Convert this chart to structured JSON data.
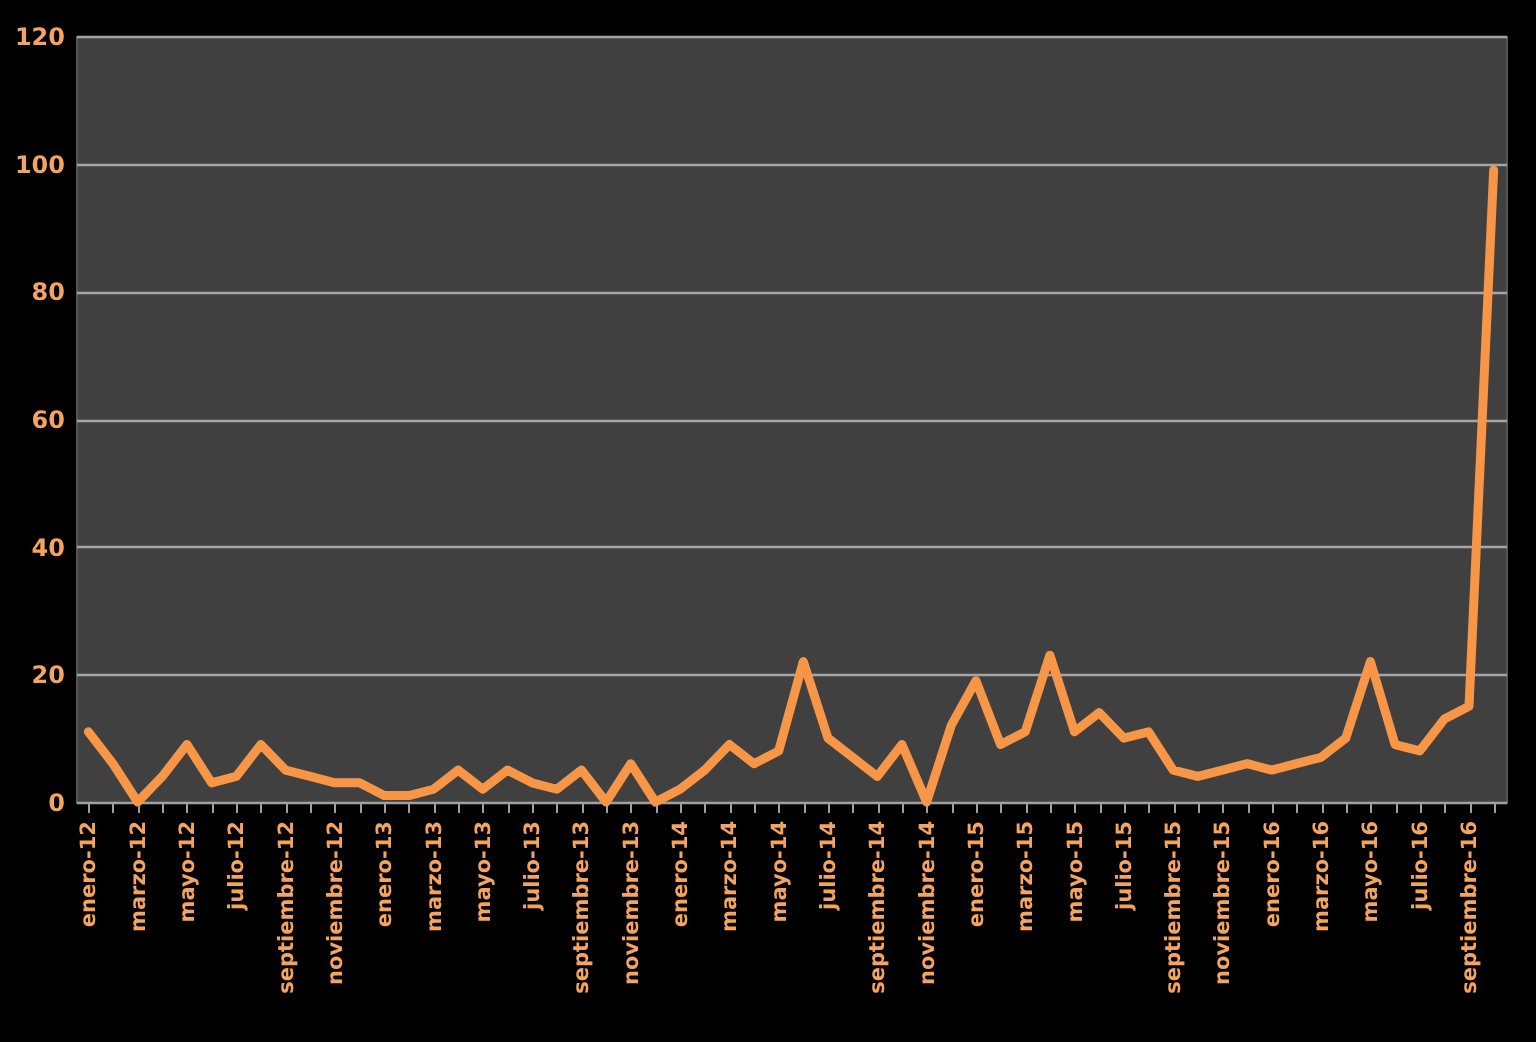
{
  "chart_data": {
    "type": "line",
    "categories": [
      "enero-12",
      null,
      "marzo-12",
      null,
      "mayo-12",
      null,
      "julio-12",
      null,
      "septiembre-12",
      null,
      "noviembre-12",
      null,
      "enero-13",
      null,
      "marzo-13",
      null,
      "mayo-13",
      null,
      "julio-13",
      null,
      "septiembre-13",
      null,
      "noviembre-13",
      null,
      "enero-14",
      null,
      "marzo-14",
      null,
      "mayo-14",
      null,
      "julio-14",
      null,
      "septiembre-14",
      null,
      "noviembre-14",
      null,
      "enero-15",
      null,
      "marzo-15",
      null,
      "mayo-15",
      null,
      "julio-15",
      null,
      "septiembre-15",
      null,
      "noviembre-15",
      null,
      "enero-16",
      null,
      "marzo-16",
      null,
      "mayo-16",
      null,
      "julio-16",
      null,
      "septiembre-16",
      null
    ],
    "series": [
      {
        "color": "#f79646",
        "values": [
          11,
          6,
          0,
          4,
          9,
          3,
          4,
          9,
          5,
          4,
          3,
          3,
          1,
          1,
          2,
          5,
          2,
          5,
          3,
          2,
          5,
          0,
          6,
          0,
          2,
          5,
          9,
          6,
          8,
          22,
          10,
          7,
          4,
          9,
          0,
          12,
          19,
          9,
          11,
          23,
          11,
          14,
          10,
          11,
          5,
          4,
          5,
          6,
          5,
          6,
          7,
          10,
          22,
          9,
          8,
          13,
          15,
          99
        ]
      }
    ],
    "ylim": [
      0,
      120
    ],
    "yticks": [
      0,
      20,
      40,
      60,
      80,
      100,
      120
    ],
    "grid": "y"
  }
}
